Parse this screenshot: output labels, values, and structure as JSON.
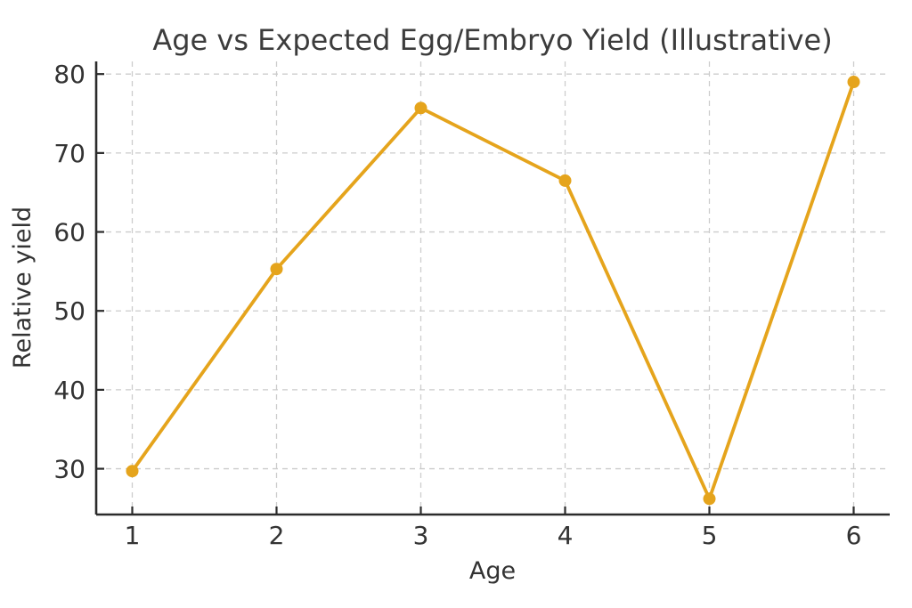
{
  "chart_data": {
    "type": "line",
    "title": "Age vs Expected Egg/Embryo Yield (Illustrative)",
    "xlabel": "Age",
    "ylabel": "Relative yield",
    "x": [
      1,
      2,
      3,
      4,
      5,
      6
    ],
    "y": [
      29.7,
      55.3,
      75.7,
      66.5,
      26.2,
      79.0
    ],
    "xticks": [
      1,
      2,
      3,
      4,
      5,
      6
    ],
    "yticks": [
      30,
      40,
      50,
      60,
      70,
      80
    ],
    "xlim": [
      0.75,
      6.25
    ],
    "ylim": [
      24.2,
      81.6
    ],
    "grid": true,
    "grid_style": "dashed",
    "legend": "none",
    "marker": "circle",
    "colors": {
      "line": "#E5A41C",
      "marker": "#E5A41C",
      "grid": "#CCCCCC",
      "spine": "#2B2B2B",
      "title_text": "#3C3C3C",
      "tick_text": "#333333",
      "background": "#FFFFFF"
    }
  }
}
